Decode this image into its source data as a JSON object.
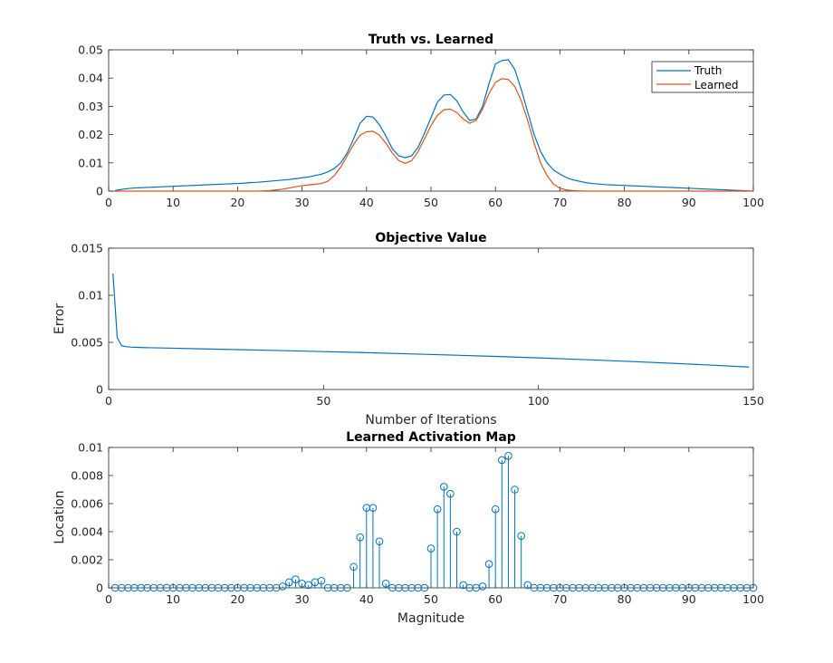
{
  "colors": {
    "truth": "#0072BD",
    "learned": "#D95319",
    "axis": "#262626",
    "background": "#FFFFFF"
  },
  "chart_data": [
    {
      "type": "line",
      "title": "Truth vs. Learned",
      "xlabel": "",
      "ylabel": "",
      "xlim": [
        0,
        100
      ],
      "ylim": [
        0,
        0.05
      ],
      "xticks": [
        0,
        10,
        20,
        30,
        40,
        50,
        60,
        70,
        80,
        90,
        100
      ],
      "xtick_labels": [
        "0",
        "10",
        "20",
        "30",
        "40",
        "50",
        "60",
        "70",
        "80",
        "90",
        "100"
      ],
      "yticks": [
        0,
        0.01,
        0.02,
        0.03,
        0.04,
        0.05
      ],
      "ytick_labels": [
        "0",
        "0.01",
        "0.02",
        "0.03",
        "0.04",
        "0.05"
      ],
      "grid": false,
      "legend": "top-right",
      "x": [
        1,
        2,
        3,
        4,
        5,
        6,
        7,
        8,
        9,
        10,
        11,
        12,
        13,
        14,
        15,
        16,
        17,
        18,
        19,
        20,
        21,
        22,
        23,
        24,
        25,
        26,
        27,
        28,
        29,
        30,
        31,
        32,
        33,
        34,
        35,
        36,
        37,
        38,
        39,
        40,
        41,
        42,
        43,
        44,
        45,
        46,
        47,
        48,
        49,
        50,
        51,
        52,
        53,
        54,
        55,
        56,
        57,
        58,
        59,
        60,
        61,
        62,
        63,
        64,
        65,
        66,
        67,
        68,
        69,
        70,
        71,
        72,
        73,
        74,
        75,
        76,
        77,
        78,
        79,
        80,
        81,
        82,
        83,
        84,
        85,
        86,
        87,
        88,
        89,
        90,
        91,
        92,
        93,
        94,
        95,
        96,
        97,
        98,
        99,
        100
      ],
      "series": [
        {
          "name": "Truth",
          "color": "#0072BD",
          "values": [
            0.0002,
            0.0006,
            0.0009,
            0.0011,
            0.0012,
            0.0013,
            0.0014,
            0.0015,
            0.0016,
            0.0017,
            0.0018,
            0.0019,
            0.002,
            0.0021,
            0.0022,
            0.0023,
            0.0024,
            0.0025,
            0.0026,
            0.0027,
            0.0028,
            0.003,
            0.0031,
            0.0033,
            0.0035,
            0.0037,
            0.0039,
            0.0041,
            0.0044,
            0.0047,
            0.005,
            0.0055,
            0.006,
            0.0068,
            0.008,
            0.01,
            0.0135,
            0.0185,
            0.024,
            0.0265,
            0.0262,
            0.0235,
            0.0195,
            0.015,
            0.0125,
            0.0118,
            0.0125,
            0.0155,
            0.0205,
            0.026,
            0.0315,
            0.034,
            0.0342,
            0.032,
            0.028,
            0.025,
            0.0255,
            0.03,
            0.038,
            0.045,
            0.0462,
            0.0465,
            0.043,
            0.036,
            0.028,
            0.02,
            0.014,
            0.01,
            0.0075,
            0.006,
            0.0048,
            0.004,
            0.0035,
            0.003,
            0.0027,
            0.0025,
            0.0023,
            0.0022,
            0.0021,
            0.002,
            0.0019,
            0.0018,
            0.0017,
            0.0016,
            0.0015,
            0.0014,
            0.0013,
            0.0012,
            0.0011,
            0.001,
            0.0009,
            0.0008,
            0.0007,
            0.0006,
            0.0005,
            0.0004,
            0.0003,
            0.0002,
            0.0001,
            0.0
          ]
        },
        {
          "name": "Learned",
          "color": "#D95319",
          "values": [
            0,
            0,
            0,
            0,
            0,
            0,
            0,
            0,
            0,
            0,
            0,
            0,
            0,
            0,
            0,
            0,
            0,
            0,
            0,
            0,
            0,
            0,
            0,
            0.0001,
            0.0002,
            0.0004,
            0.0007,
            0.0011,
            0.0015,
            0.0019,
            0.0022,
            0.0024,
            0.0027,
            0.0035,
            0.0055,
            0.0085,
            0.0125,
            0.0165,
            0.0198,
            0.021,
            0.0212,
            0.0198,
            0.017,
            0.0135,
            0.0108,
            0.0098,
            0.0108,
            0.014,
            0.0185,
            0.0232,
            0.0268,
            0.0288,
            0.029,
            0.0278,
            0.0255,
            0.024,
            0.025,
            0.029,
            0.0345,
            0.0385,
            0.0398,
            0.0395,
            0.037,
            0.032,
            0.025,
            0.017,
            0.01,
            0.0055,
            0.0025,
            0.001,
            0.0004,
            0.0002,
            0.0001,
            0,
            0,
            0,
            0,
            0,
            0,
            0,
            0,
            0,
            0,
            0,
            0,
            0,
            0,
            0,
            0,
            0,
            0,
            0,
            0,
            0,
            0,
            0,
            0,
            0,
            0,
            0
          ]
        }
      ]
    },
    {
      "type": "line",
      "title": "Objective Value",
      "xlabel": "Number of Iterations",
      "ylabel": "Error",
      "xlim": [
        0,
        150
      ],
      "ylim": [
        0,
        0.015
      ],
      "xticks": [
        0,
        50,
        100,
        150
      ],
      "xtick_labels": [
        "0",
        "50",
        "100",
        "150"
      ],
      "yticks": [
        0,
        0.005,
        0.01,
        0.015
      ],
      "ytick_labels": [
        "0",
        "0.005",
        "0.01",
        "0.015"
      ],
      "grid": false,
      "x": [
        1,
        2,
        3,
        4,
        5,
        6,
        8,
        10,
        15,
        20,
        30,
        40,
        50,
        60,
        70,
        80,
        90,
        100,
        110,
        120,
        130,
        140,
        149
      ],
      "series": [
        {
          "color": "#0072BD",
          "values": [
            0.0123,
            0.0055,
            0.00465,
            0.00455,
            0.0045,
            0.00448,
            0.00445,
            0.00443,
            0.00438,
            0.00433,
            0.00423,
            0.00413,
            0.00402,
            0.00391,
            0.00378,
            0.00365,
            0.00351,
            0.00335,
            0.00318,
            0.003,
            0.0028,
            0.00259,
            0.00238
          ]
        }
      ]
    },
    {
      "type": "stem",
      "title": "Learned Activation Map",
      "xlabel": "Magnitude",
      "ylabel": "Location",
      "xlim": [
        0,
        100
      ],
      "ylim": [
        0,
        0.01
      ],
      "xticks": [
        0,
        10,
        20,
        30,
        40,
        50,
        60,
        70,
        80,
        90,
        100
      ],
      "xtick_labels": [
        "0",
        "10",
        "20",
        "30",
        "40",
        "50",
        "60",
        "70",
        "80",
        "90",
        "100"
      ],
      "yticks": [
        0,
        0.002,
        0.004,
        0.006,
        0.008,
        0.01
      ],
      "ytick_labels": [
        "0",
        "0.002",
        "0.004",
        "0.006",
        "0.008",
        "0.01"
      ],
      "grid": false,
      "x": [
        1,
        2,
        3,
        4,
        5,
        6,
        7,
        8,
        9,
        10,
        11,
        12,
        13,
        14,
        15,
        16,
        17,
        18,
        19,
        20,
        21,
        22,
        23,
        24,
        25,
        26,
        27,
        28,
        29,
        30,
        31,
        32,
        33,
        34,
        35,
        36,
        37,
        38,
        39,
        40,
        41,
        42,
        43,
        44,
        45,
        46,
        47,
        48,
        49,
        50,
        51,
        52,
        53,
        54,
        55,
        56,
        57,
        58,
        59,
        60,
        61,
        62,
        63,
        64,
        65,
        66,
        67,
        68,
        69,
        70,
        71,
        72,
        73,
        74,
        75,
        76,
        77,
        78,
        79,
        80,
        81,
        82,
        83,
        84,
        85,
        86,
        87,
        88,
        89,
        90,
        91,
        92,
        93,
        94,
        95,
        96,
        97,
        98,
        99,
        100
      ],
      "series": [
        {
          "color": "#0072BD",
          "values": [
            0,
            0,
            0,
            0,
            0,
            0,
            0,
            0,
            0,
            0,
            0,
            0,
            0,
            0,
            0,
            0,
            0,
            0,
            0,
            0,
            0,
            0,
            0,
            0,
            0,
            0,
            0.0001,
            0.0004,
            0.0006,
            0.0003,
            0.0002,
            0.0004,
            0.0005,
            0,
            0,
            0,
            0,
            0.0015,
            0.0036,
            0.0057,
            0.0057,
            0.0033,
            0.0003,
            0,
            0,
            0,
            0,
            0,
            0,
            0.0028,
            0.0056,
            0.0072,
            0.0067,
            0.004,
            0.0002,
            0,
            0,
            0.0001,
            0.0017,
            0.0056,
            0.0091,
            0.0094,
            0.007,
            0.0037,
            0.0002,
            0,
            0,
            0,
            0,
            0,
            0,
            0,
            0,
            0,
            0,
            0,
            0,
            0,
            0,
            0,
            0,
            0,
            0,
            0,
            0,
            0,
            0,
            0,
            0,
            0,
            0,
            0,
            0,
            0,
            0,
            0,
            0,
            0,
            0,
            0
          ]
        }
      ]
    }
  ]
}
